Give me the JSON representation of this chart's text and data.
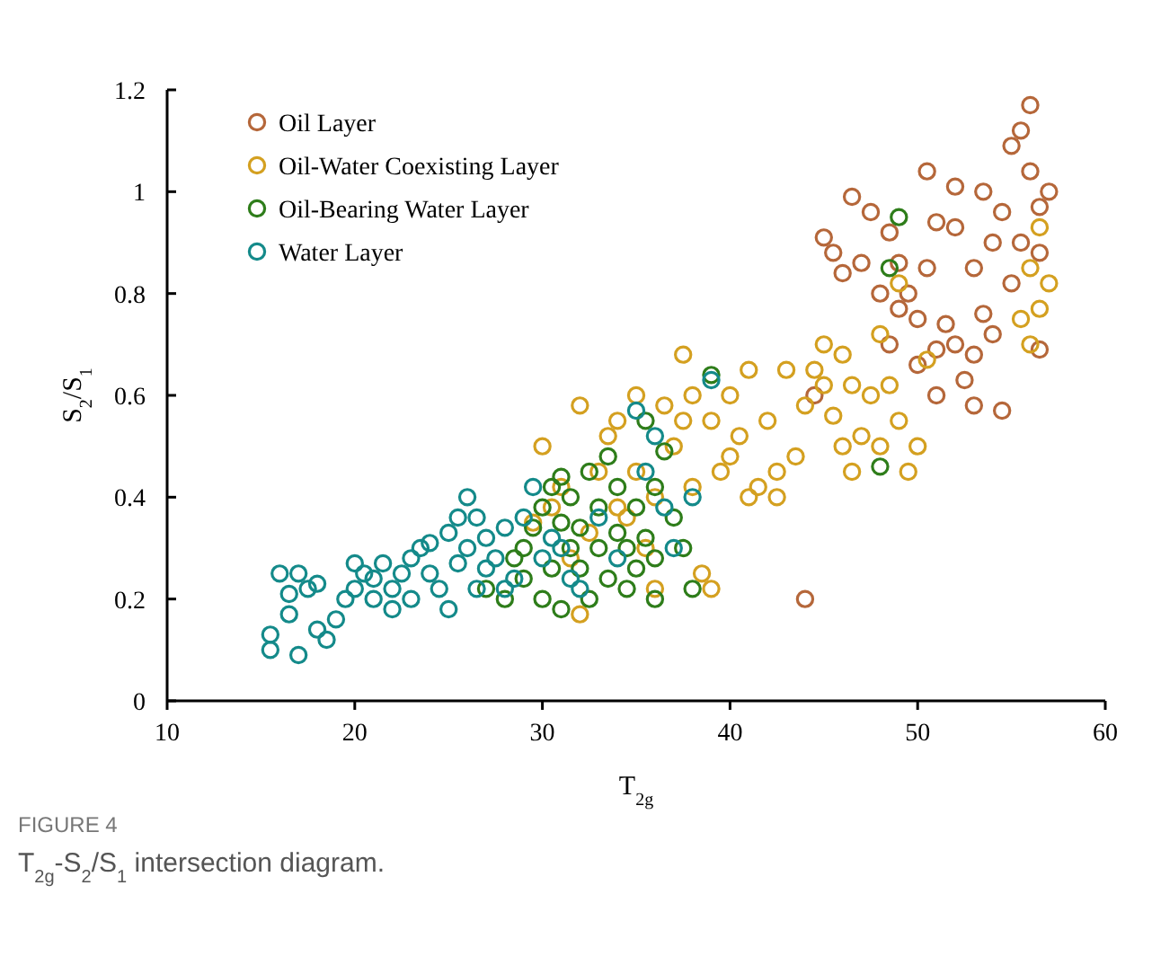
{
  "chart_data": {
    "type": "scatter",
    "xlabel": "T$_{2g}$",
    "ylabel": "S$_{2}$/S$_{1}$",
    "xlim": [
      10,
      60
    ],
    "xticks": [
      10,
      20,
      30,
      40,
      50,
      60
    ],
    "ylim": [
      0,
      1.2
    ],
    "yticks": [
      0,
      0.2,
      0.4,
      0.6,
      0.8,
      1,
      1.2
    ],
    "grid": false,
    "legend": "top left",
    "marker": "circle",
    "annotations": [
      "FIGURE 4",
      "T$_{2g}$-S$_{2}$/S$_{1}$ intersection diagram."
    ],
    "series": [
      {
        "name": "Oil Layer",
        "color": "#b5673a",
        "x": [
          44,
          44.5,
          45,
          45.5,
          46,
          46.5,
          47,
          47.5,
          48,
          48.5,
          48.5,
          49,
          49,
          49.5,
          50,
          50,
          50.5,
          50.5,
          51,
          51,
          51.5,
          52,
          52,
          52,
          52.5,
          53,
          53,
          53.5,
          53.5,
          54,
          54,
          54.5,
          54.5,
          55,
          55,
          55.5,
          55.5,
          56,
          56,
          56.5,
          56.5,
          57,
          56.5,
          53,
          51
        ],
        "values": [
          0.2,
          0.6,
          0.91,
          0.88,
          0.84,
          0.99,
          0.86,
          0.96,
          0.8,
          0.92,
          0.7,
          0.86,
          0.77,
          0.8,
          0.75,
          0.66,
          0.85,
          1.04,
          0.69,
          0.6,
          0.74,
          1.01,
          0.93,
          0.7,
          0.63,
          0.85,
          0.58,
          1.0,
          0.76,
          0.72,
          0.9,
          0.96,
          0.57,
          1.09,
          0.82,
          1.12,
          0.9,
          1.17,
          1.04,
          0.97,
          0.88,
          1.0,
          0.69,
          0.68,
          0.94
        ]
      },
      {
        "name": "Oil-Water Coexisting Layer",
        "color": "#d4a020",
        "x": [
          29.5,
          30,
          30.5,
          31,
          31.5,
          32,
          32,
          32.5,
          33,
          33.5,
          34,
          34,
          34.5,
          35,
          35,
          35.5,
          36,
          36,
          36.5,
          37,
          37.5,
          37.5,
          38,
          38,
          38.5,
          39,
          39,
          39.5,
          40,
          40,
          40.5,
          41,
          41,
          41.5,
          42,
          42.5,
          42.5,
          43,
          43.5,
          44,
          44.5,
          45,
          45,
          45.5,
          46,
          46,
          46.5,
          46.5,
          47,
          47.5,
          48,
          48,
          48.5,
          49,
          49,
          49.5,
          50,
          50.5,
          56,
          56.5,
          56.5,
          56,
          57,
          55.5
        ],
        "values": [
          0.35,
          0.5,
          0.38,
          0.42,
          0.28,
          0.17,
          0.58,
          0.33,
          0.45,
          0.52,
          0.55,
          0.38,
          0.36,
          0.45,
          0.6,
          0.3,
          0.22,
          0.4,
          0.58,
          0.5,
          0.68,
          0.55,
          0.6,
          0.42,
          0.25,
          0.55,
          0.22,
          0.45,
          0.6,
          0.48,
          0.52,
          0.65,
          0.4,
          0.42,
          0.55,
          0.45,
          0.4,
          0.65,
          0.48,
          0.58,
          0.65,
          0.7,
          0.62,
          0.56,
          0.68,
          0.5,
          0.45,
          0.62,
          0.52,
          0.6,
          0.72,
          0.5,
          0.62,
          0.82,
          0.55,
          0.45,
          0.5,
          0.67,
          0.85,
          0.93,
          0.77,
          0.7,
          0.82,
          0.75
        ]
      },
      {
        "name": "Oil-Bearing Water Layer",
        "color": "#2e7d1a",
        "x": [
          27,
          28,
          28.5,
          29,
          29,
          29.5,
          30,
          30,
          30.5,
          30.5,
          31,
          31,
          31,
          31.5,
          31.5,
          32,
          32,
          32.5,
          32.5,
          33,
          33,
          33.5,
          33.5,
          34,
          34,
          34.5,
          34.5,
          35,
          35,
          35.5,
          35.5,
          36,
          36,
          36.5,
          37,
          37.5,
          38,
          39,
          48.5,
          49,
          48,
          36
        ],
        "values": [
          0.22,
          0.2,
          0.28,
          0.3,
          0.24,
          0.34,
          0.2,
          0.38,
          0.26,
          0.42,
          0.18,
          0.35,
          0.44,
          0.3,
          0.4,
          0.26,
          0.34,
          0.2,
          0.45,
          0.3,
          0.38,
          0.24,
          0.48,
          0.33,
          0.42,
          0.3,
          0.22,
          0.38,
          0.26,
          0.55,
          0.32,
          0.28,
          0.42,
          0.49,
          0.36,
          0.3,
          0.22,
          0.64,
          0.85,
          0.95,
          0.46,
          0.2
        ]
      },
      {
        "name": "Water Layer",
        "color": "#148a8a",
        "x": [
          15.5,
          15.5,
          16,
          16.5,
          16.5,
          17,
          17.5,
          17,
          18,
          18,
          18.5,
          19,
          19.5,
          20,
          20,
          20.5,
          21,
          21,
          21.5,
          22,
          22,
          22.5,
          23,
          23,
          23.5,
          24,
          24,
          24.5,
          25,
          25,
          25.5,
          25.5,
          26,
          26,
          26.5,
          26.5,
          27,
          27,
          27.5,
          28,
          28,
          28.5,
          29,
          29.5,
          30,
          30.5,
          31,
          31.5,
          32,
          33,
          34,
          35,
          35.5,
          36,
          36.5,
          37,
          39,
          38
        ],
        "values": [
          0.13,
          0.1,
          0.25,
          0.21,
          0.17,
          0.25,
          0.22,
          0.09,
          0.23,
          0.14,
          0.12,
          0.16,
          0.2,
          0.27,
          0.22,
          0.25,
          0.2,
          0.24,
          0.27,
          0.22,
          0.18,
          0.25,
          0.2,
          0.28,
          0.3,
          0.25,
          0.31,
          0.22,
          0.33,
          0.18,
          0.36,
          0.27,
          0.4,
          0.3,
          0.36,
          0.22,
          0.32,
          0.26,
          0.28,
          0.34,
          0.22,
          0.24,
          0.36,
          0.42,
          0.28,
          0.32,
          0.3,
          0.24,
          0.22,
          0.36,
          0.28,
          0.57,
          0.45,
          0.52,
          0.38,
          0.3,
          0.63,
          0.4
        ]
      }
    ]
  }
}
